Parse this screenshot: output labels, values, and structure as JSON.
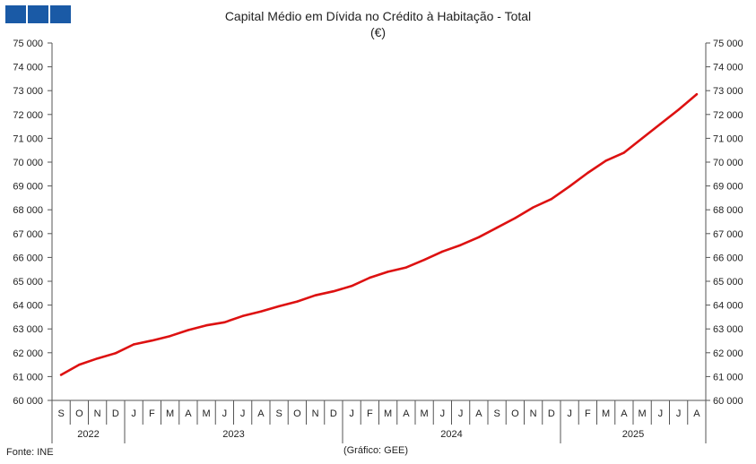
{
  "header": {
    "title": "Capital Médio em Dívida no Crédito à Habitação - Total",
    "unit": "(€)"
  },
  "footer": {
    "source": "Fonte: INE",
    "credit": "(Gráfico: GEE)"
  },
  "colors": {
    "line": "#dd1111",
    "logo": "#1a5aa6",
    "axis": "#555555"
  },
  "chart_data": {
    "type": "line",
    "title": "Capital Médio em Dívida no Crédito à Habitação - Total",
    "subtitle": "(€)",
    "ylim": [
      60000,
      75000
    ],
    "y_ticks": [
      "60 000",
      "61 000",
      "62 000",
      "63 000",
      "64 000",
      "65 000",
      "66 000",
      "67 000",
      "68 000",
      "69 000",
      "70 000",
      "71 000",
      "72 000",
      "73 000",
      "74 000",
      "75 000"
    ],
    "y_tick_values": [
      60000,
      61000,
      62000,
      63000,
      64000,
      65000,
      66000,
      67000,
      68000,
      69000,
      70000,
      71000,
      72000,
      73000,
      74000,
      75000
    ],
    "grid": false,
    "dual_y_axis": true,
    "x_month_labels": [
      "S",
      "O",
      "N",
      "D",
      "J",
      "F",
      "M",
      "A",
      "M",
      "J",
      "J",
      "A",
      "S",
      "O",
      "N",
      "D",
      "J",
      "F",
      "M",
      "A",
      "M",
      "J",
      "J",
      "A",
      "S",
      "O",
      "N",
      "D",
      "J",
      "F",
      "M",
      "A",
      "M",
      "J",
      "J",
      "A"
    ],
    "x_year_groups": [
      {
        "label": "2022",
        "count": 4
      },
      {
        "label": "2023",
        "count": 12
      },
      {
        "label": "2024",
        "count": 12
      },
      {
        "label": "2025",
        "count": 8
      }
    ],
    "series": [
      {
        "values": [
          61070,
          61500,
          61760,
          61980,
          62350,
          62510,
          62700,
          62950,
          63150,
          63280,
          63540,
          63730,
          63950,
          64150,
          64410,
          64580,
          64800,
          65150,
          65400,
          65580,
          65900,
          66250,
          66520,
          66850,
          67250,
          67650,
          68100,
          68450,
          68980,
          69550,
          70060,
          70400,
          71000,
          71600,
          72200,
          72850
        ]
      }
    ]
  }
}
